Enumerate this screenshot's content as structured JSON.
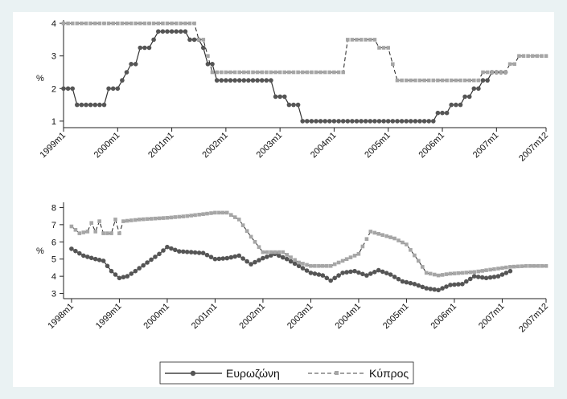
{
  "chart_data": [
    {
      "type": "line",
      "ylabel": "%",
      "xlim": [
        "1999-01",
        "2007-12"
      ],
      "ylim": [
        0.8,
        4.1
      ],
      "yticks": [
        1,
        2,
        3,
        4
      ],
      "xticks": [
        "1999m1",
        "2000m1",
        "2001m1",
        "2002m1",
        "2003m1",
        "2004m1",
        "2005m1",
        "2006m1",
        "2007m1",
        "2007m12"
      ],
      "grid": false,
      "series": [
        {
          "name": "Ευρωζώνη",
          "color": "#555555",
          "steps": [
            {
              "from": "1999-01",
              "to": "1999-04",
              "value": 2.0
            },
            {
              "from": "1999-04",
              "to": "1999-11",
              "value": 1.5
            },
            {
              "from": "1999-11",
              "to": "2000-02",
              "value": 2.0
            },
            {
              "from": "2000-02",
              "to": "2000-03",
              "value": 2.25
            },
            {
              "from": "2000-03",
              "to": "2000-04",
              "value": 2.5
            },
            {
              "from": "2000-04",
              "to": "2000-06",
              "value": 2.75
            },
            {
              "from": "2000-06",
              "to": "2000-09",
              "value": 3.25
            },
            {
              "from": "2000-09",
              "to": "2000-10",
              "value": 3.5
            },
            {
              "from": "2000-10",
              "to": "2001-05",
              "value": 3.75
            },
            {
              "from": "2001-05",
              "to": "2001-08",
              "value": 3.5
            },
            {
              "from": "2001-08",
              "to": "2001-09",
              "value": 3.25
            },
            {
              "from": "2001-09",
              "to": "2001-11",
              "value": 2.75
            },
            {
              "from": "2001-11",
              "to": "2002-12",
              "value": 2.25
            },
            {
              "from": "2002-12",
              "to": "2003-03",
              "value": 1.75
            },
            {
              "from": "2003-03",
              "to": "2003-06",
              "value": 1.5
            },
            {
              "from": "2003-06",
              "to": "2005-12",
              "value": 1.0
            },
            {
              "from": "2005-12",
              "to": "2006-03",
              "value": 1.25
            },
            {
              "from": "2006-03",
              "to": "2006-06",
              "value": 1.5
            },
            {
              "from": "2006-06",
              "to": "2006-08",
              "value": 1.75
            },
            {
              "from": "2006-08",
              "to": "2006-10",
              "value": 2.0
            },
            {
              "from": "2006-10",
              "to": "2006-12",
              "value": 2.25
            },
            {
              "from": "2006-12",
              "to": "2007-03",
              "value": 2.5
            }
          ]
        },
        {
          "name": "Κύπρος",
          "color": "#a6a6a6",
          "dashed": true,
          "steps": [
            {
              "from": "1999-01",
              "to": "2001-07",
              "value": 4.0
            },
            {
              "from": "2001-07",
              "to": "2001-09",
              "value": 3.5
            },
            {
              "from": "2001-09",
              "to": "2001-10",
              "value": 3.0
            },
            {
              "from": "2001-10",
              "to": "2004-04",
              "value": 2.5
            },
            {
              "from": "2004-04",
              "to": "2004-11",
              "value": 3.5
            },
            {
              "from": "2004-11",
              "to": "2005-02",
              "value": 3.25
            },
            {
              "from": "2005-02",
              "to": "2005-03",
              "value": 2.75
            },
            {
              "from": "2005-03",
              "to": "2006-10",
              "value": 2.25
            },
            {
              "from": "2006-10",
              "to": "2007-01",
              "value": 2.5
            },
            {
              "from": "2007-01",
              "to": "2007-04",
              "value": 2.5
            },
            {
              "from": "2007-04",
              "to": "2007-06",
              "value": 2.75
            },
            {
              "from": "2007-06",
              "to": "2007-12",
              "value": 3.0
            }
          ]
        }
      ]
    },
    {
      "type": "line",
      "ylabel": "%",
      "xlim": [
        "1997-11",
        "2007-12"
      ],
      "ylim": [
        2.7,
        8.3
      ],
      "yticks": [
        3,
        4,
        5,
        6,
        7,
        8
      ],
      "xticks": [
        "1998m1",
        "1999m1",
        "2000m1",
        "2001m1",
        "2002m1",
        "2003m1",
        "2004m1",
        "2005m1",
        "2006m1",
        "2007m1",
        "2007m12"
      ],
      "grid": false,
      "series": [
        {
          "name": "Ευρωζώνη",
          "color": "#555555",
          "start": "1998-01",
          "end": "2007-03",
          "points": [
            [
              "1998-01",
              5.6
            ],
            [
              "1998-04",
              5.2
            ],
            [
              "1998-07",
              5.0
            ],
            [
              "1998-09",
              4.9
            ],
            [
              "1998-11",
              4.3
            ],
            [
              "1999-01",
              3.9
            ],
            [
              "1999-03",
              4.0
            ],
            [
              "1999-05",
              4.3
            ],
            [
              "1999-08",
              4.8
            ],
            [
              "1999-11",
              5.3
            ],
            [
              "2000-01",
              5.7
            ],
            [
              "2000-04",
              5.45
            ],
            [
              "2000-07",
              5.4
            ],
            [
              "2000-10",
              5.35
            ],
            [
              "2001-01",
              5.0
            ],
            [
              "2001-04",
              5.05
            ],
            [
              "2001-07",
              5.2
            ],
            [
              "2001-10",
              4.7
            ],
            [
              "2002-01",
              5.05
            ],
            [
              "2002-04",
              5.3
            ],
            [
              "2002-07",
              5.0
            ],
            [
              "2002-10",
              4.6
            ],
            [
              "2003-01",
              4.2
            ],
            [
              "2003-04",
              4.05
            ],
            [
              "2003-06",
              3.75
            ],
            [
              "2003-09",
              4.2
            ],
            [
              "2003-12",
              4.3
            ],
            [
              "2004-03",
              4.05
            ],
            [
              "2004-06",
              4.35
            ],
            [
              "2004-09",
              4.1
            ],
            [
              "2004-12",
              3.7
            ],
            [
              "2005-03",
              3.55
            ],
            [
              "2005-06",
              3.3
            ],
            [
              "2005-09",
              3.2
            ],
            [
              "2005-12",
              3.5
            ],
            [
              "2006-03",
              3.55
            ],
            [
              "2006-06",
              4.0
            ],
            [
              "2006-09",
              3.9
            ],
            [
              "2006-12",
              4.0
            ],
            [
              "2007-03",
              4.3
            ]
          ]
        },
        {
          "name": "Κύπρος",
          "color": "#a6a6a6",
          "dashed": true,
          "start": "1998-01",
          "end": "2007-12",
          "points": [
            [
              "1998-01",
              6.9
            ],
            [
              "1998-03",
              6.5
            ],
            [
              "1998-05",
              6.6
            ],
            [
              "1998-06",
              7.1
            ],
            [
              "1998-07",
              6.6
            ],
            [
              "1998-08",
              7.2
            ],
            [
              "1998-09",
              6.5
            ],
            [
              "1998-11",
              6.5
            ],
            [
              "1998-12",
              7.3
            ],
            [
              "1999-01",
              6.5
            ],
            [
              "1999-02",
              7.2
            ],
            [
              "1999-06",
              7.3
            ],
            [
              "2000-01",
              7.4
            ],
            [
              "2000-06",
              7.5
            ],
            [
              "2001-01",
              7.7
            ],
            [
              "2001-04",
              7.7
            ],
            [
              "2001-07",
              7.3
            ],
            [
              "2001-10",
              6.3
            ],
            [
              "2002-01",
              5.4
            ],
            [
              "2002-06",
              5.4
            ],
            [
              "2002-10",
              4.8
            ],
            [
              "2003-01",
              4.6
            ],
            [
              "2003-06",
              4.6
            ],
            [
              "2003-09",
              4.9
            ],
            [
              "2004-01",
              5.3
            ],
            [
              "2004-04",
              6.6
            ],
            [
              "2004-07",
              6.4
            ],
            [
              "2004-10",
              6.2
            ],
            [
              "2005-01",
              5.85
            ],
            [
              "2005-04",
              4.9
            ],
            [
              "2005-06",
              4.2
            ],
            [
              "2005-09",
              4.05
            ],
            [
              "2005-12",
              4.15
            ],
            [
              "2006-03",
              4.2
            ],
            [
              "2006-06",
              4.25
            ],
            [
              "2006-09",
              4.35
            ],
            [
              "2006-12",
              4.45
            ],
            [
              "2007-03",
              4.55
            ],
            [
              "2007-07",
              4.6
            ],
            [
              "2007-12",
              4.6
            ]
          ]
        }
      ]
    }
  ],
  "legend": {
    "placement": "bottom-center",
    "items": [
      {
        "label": "Ευρωζώνη",
        "style": "solid-circle"
      },
      {
        "label": "Κύπρος",
        "style": "dashed-square"
      }
    ]
  }
}
